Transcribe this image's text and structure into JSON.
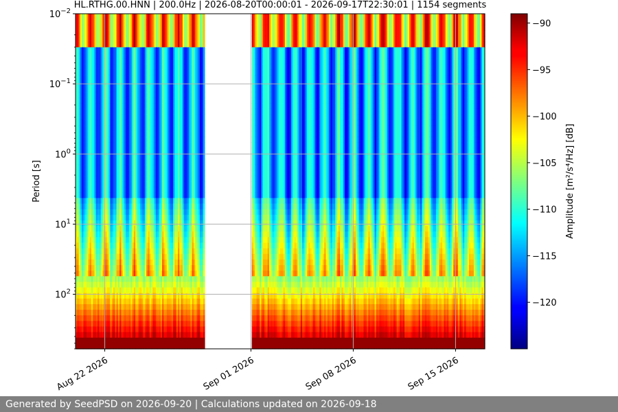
{
  "chart_data": {
    "type": "heatmap",
    "title": "HL.RTHG.00.HNN | 200.0Hz | 2026-08-20T00:00:01 - 2026-09-17T22:30:01 | 1154 segments",
    "ylabel": "Period [s]",
    "xlabel": "",
    "y_scale": "log",
    "y_reversed": true,
    "y_ticks": [
      {
        "value": 0.01,
        "base": "10",
        "exp": "−2"
      },
      {
        "value": 0.1,
        "base": "10",
        "exp": "−1"
      },
      {
        "value": 1,
        "base": "10",
        "exp": "0"
      },
      {
        "value": 10,
        "base": "10",
        "exp": "1"
      },
      {
        "value": 100,
        "base": "10",
        "exp": "2"
      }
    ],
    "ylim": [
      0.01,
      600
    ],
    "xlim": [
      "2026-08-20",
      "2026-09-17"
    ],
    "x_ticks": [
      "Aug 22 2026",
      "Sep 01 2026",
      "Sep 08 2026",
      "Sep 15 2026"
    ],
    "x_tick_dates": [
      "2026-08-22",
      "2026-09-01",
      "2026-09-08",
      "2026-09-15"
    ],
    "data_gap": [
      "2026-08-28T20:00",
      "2026-09-01T02:00"
    ],
    "grid": true,
    "colorbar": {
      "label": "Amplitude",
      "label_units": "[m²/s⁴/Hz] [dB]",
      "colormap": "jet",
      "range": [
        -125,
        -89
      ],
      "ticks": [
        -90,
        -95,
        -100,
        -105,
        -110,
        -115,
        -120
      ]
    }
  },
  "footer_text": "Generated by SeedPSD on 2026-09-20 | Calculations updated on 2026-09-18"
}
